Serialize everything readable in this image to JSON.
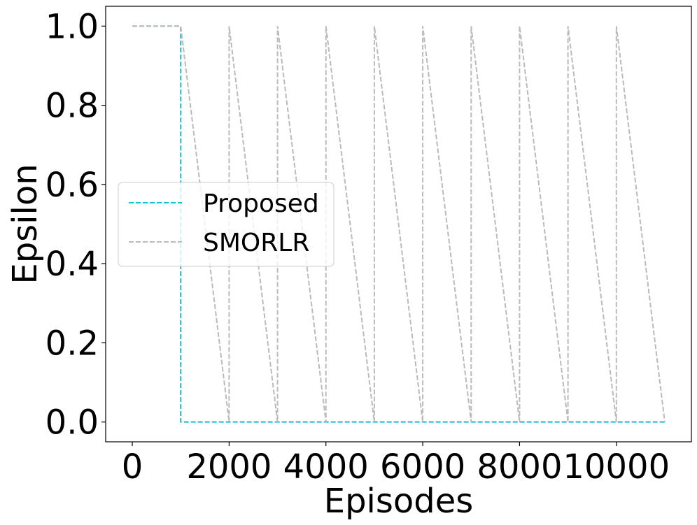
{
  "chart_data": {
    "type": "line",
    "xlabel": "Episodes",
    "ylabel": "Epsilon",
    "xlim": [
      -550,
      11550
    ],
    "ylim": [
      -0.05,
      1.05
    ],
    "xticks": [
      0,
      2000,
      4000,
      6000,
      8000,
      10000
    ],
    "xtick_labels": [
      "0",
      "2000",
      "4000",
      "6000",
      "8000",
      "10000"
    ],
    "yticks": [
      0.0,
      0.2,
      0.4,
      0.6,
      0.8,
      1.0
    ],
    "ytick_labels": [
      "0.0",
      "0.2",
      "0.4",
      "0.6",
      "0.8",
      "1.0"
    ],
    "grid": false,
    "legend_position": "center-left",
    "series": [
      {
        "name": "Proposed",
        "color": "#17becf",
        "dash": "dashed",
        "x": [
          0,
          1000,
          1000,
          11000
        ],
        "y": [
          1.0,
          1.0,
          0.0,
          0.0
        ]
      },
      {
        "name": "SMORLR",
        "color": "#bbbbbb",
        "dash": "dashed",
        "x": [
          0,
          1000,
          2000,
          2000,
          3000,
          3000,
          4000,
          4000,
          5000,
          5000,
          6000,
          6000,
          7000,
          7000,
          8000,
          8000,
          9000,
          9000,
          10000,
          10000,
          11000
        ],
        "y": [
          1.0,
          1.0,
          0.0,
          1.0,
          0.0,
          1.0,
          0.0,
          1.0,
          0.0,
          1.0,
          0.0,
          1.0,
          0.0,
          1.0,
          0.0,
          1.0,
          0.0,
          1.0,
          0.0,
          1.0,
          0.0
        ]
      }
    ]
  }
}
